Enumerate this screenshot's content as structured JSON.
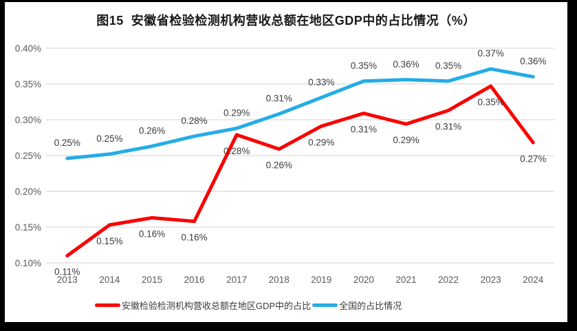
{
  "frame": {
    "background": "#000000",
    "chart_background": "#ffffff"
  },
  "chart_data": {
    "type": "line",
    "title": "图15  安徽省检验检测机构营收总额在地区GDP中的占比情况（%）",
    "categories": [
      "2013",
      "2014",
      "2015",
      "2016",
      "2017",
      "2018",
      "2019",
      "2020",
      "2021",
      "2022",
      "2023",
      "2024"
    ],
    "series": [
      {
        "name": "安徽检验检测机构营收总额在地区GDP中的占比",
        "color": "#FB0000",
        "values": [
          0.11,
          0.15,
          0.16,
          0.16,
          0.28,
          0.26,
          0.29,
          0.31,
          0.29,
          0.31,
          0.35,
          0.27
        ],
        "labels": [
          "0.11%",
          "0.15%",
          "0.16%",
          "0.16%",
          "0.28%",
          "0.26%",
          "0.29%",
          "0.31%",
          "0.29%",
          "0.31%",
          "0.35%",
          "0.27%"
        ],
        "plotted": [
          0.11,
          0.153,
          0.163,
          0.158,
          0.279,
          0.259,
          0.291,
          0.309,
          0.294,
          0.313,
          0.347,
          0.268
        ],
        "label_position": "below"
      },
      {
        "name": "全国的占比情况",
        "color": "#24ACE5",
        "values": [
          0.25,
          0.25,
          0.26,
          0.28,
          0.29,
          0.31,
          0.33,
          0.35,
          0.36,
          0.35,
          0.37,
          0.36
        ],
        "labels": [
          "0.25%",
          "0.25%",
          "0.26%",
          "0.28%",
          "0.29%",
          "0.31%",
          "0.33%",
          "0.35%",
          "0.36%",
          "0.35%",
          "0.37%",
          "0.36%"
        ],
        "plotted": [
          0.246,
          0.252,
          0.263,
          0.277,
          0.288,
          0.308,
          0.331,
          0.354,
          0.356,
          0.354,
          0.371,
          0.36
        ],
        "label_position": "above"
      }
    ],
    "xlabel": "",
    "ylabel": "",
    "ylim": [
      0.1,
      0.4
    ],
    "ytick_step": 0.05,
    "ytick_labels": [
      "0.10%",
      "0.15%",
      "0.20%",
      "0.25%",
      "0.30%",
      "0.35%",
      "0.40%"
    ],
    "value_suffix": "%",
    "grid": true,
    "gridline_color": "#D9D9D9",
    "axis_label_color": "#595959",
    "data_label_color": "#3B3B3B",
    "legend_position": "bottom"
  }
}
